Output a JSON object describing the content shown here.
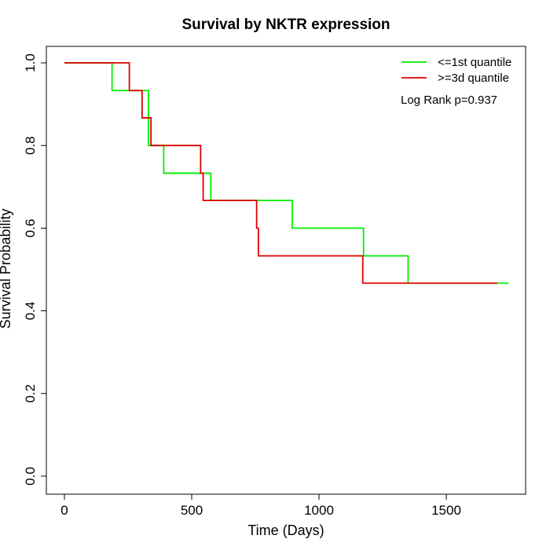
{
  "chart_data": {
    "type": "line",
    "step": true,
    "title": "Survival by NKTR expression",
    "xlabel": "Time (Days)",
    "ylabel": "Survival Probability",
    "xlim": [
      0,
      1750
    ],
    "ylim": [
      0,
      1
    ],
    "xticks": [
      0,
      500,
      1000,
      1500
    ],
    "yticks": [
      0.0,
      0.2,
      0.4,
      0.6,
      0.8,
      1.0
    ],
    "ytick_labels": [
      "0.0",
      "0.2",
      "0.4",
      "0.6",
      "0.8",
      "1.0"
    ],
    "xtick_labels": [
      "0",
      "500",
      "1000",
      "1500"
    ],
    "grid": false,
    "legend_position": "top-right",
    "annotation": "Log Rank p=0.937",
    "series": [
      {
        "name": "<=1st quantile",
        "color": "#00ee00",
        "x": [
          0,
          187,
          330,
          390,
          575,
          895,
          1175,
          1350,
          1745
        ],
        "y": [
          1.0,
          0.933,
          0.8,
          0.733,
          0.667,
          0.6,
          0.533,
          0.467,
          0.467
        ]
      },
      {
        "name": ">=3d quantile",
        "color": "#dd0000",
        "x": [
          0,
          255,
          305,
          340,
          535,
          545,
          755,
          762,
          1172,
          1700
        ],
        "y": [
          1.0,
          0.933,
          0.867,
          0.8,
          0.733,
          0.667,
          0.6,
          0.533,
          0.467,
          0.467
        ]
      }
    ]
  }
}
